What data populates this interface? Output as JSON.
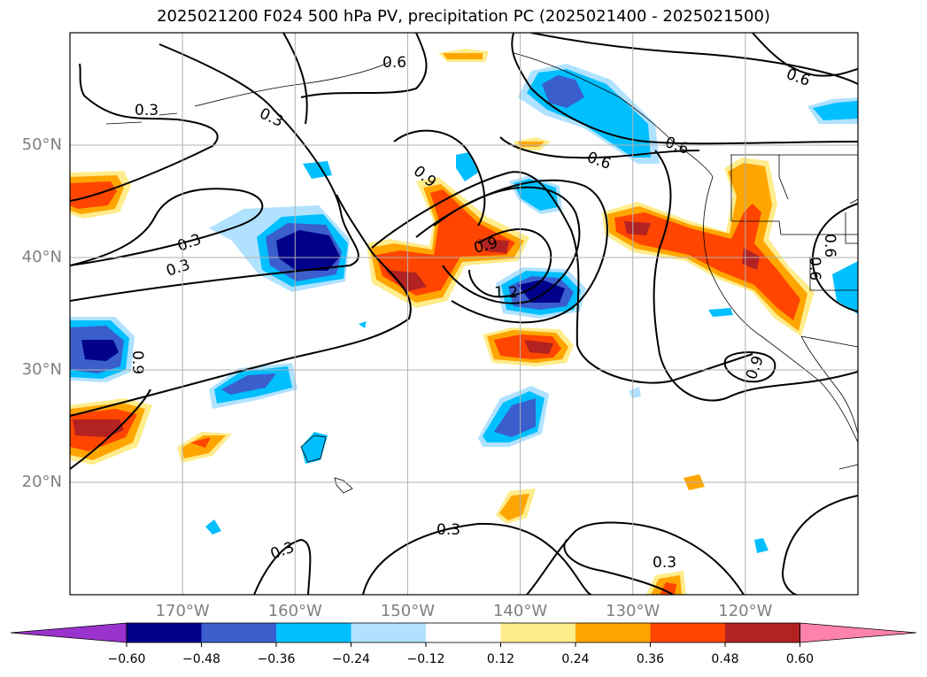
{
  "title": "2025021200 F024 500 hPa PV, precipitation PC (2025021400 - 2025021500)",
  "map": {
    "projection": "lat-lon",
    "gridlines": true,
    "lon_range": [
      -180,
      -110
    ],
    "lat_range": [
      10,
      60
    ],
    "lat_ticks": [
      {
        "value": 50,
        "label": "50°N"
      },
      {
        "value": 40,
        "label": "40°N"
      },
      {
        "value": 30,
        "label": "30°N"
      },
      {
        "value": 20,
        "label": "20°N"
      }
    ],
    "lon_ticks": [
      {
        "value": -170,
        "label": "170°W"
      },
      {
        "value": -160,
        "label": "160°W"
      },
      {
        "value": -150,
        "label": "150°W"
      },
      {
        "value": -140,
        "label": "140°W"
      },
      {
        "value": -130,
        "label": "130°W"
      },
      {
        "value": -120,
        "label": "120°W"
      }
    ],
    "contour_labels": [
      "0.3",
      "0.6",
      "0.9",
      "1.2"
    ]
  },
  "colorbar": {
    "colors": [
      "#9a32cd",
      "#00008b",
      "#3a5fcd",
      "#00bfff",
      "#b0e2ff",
      "#ffffff",
      "#ffec8b",
      "#ffa500",
      "#ff4500",
      "#b22222",
      "#ff82ab"
    ],
    "labels": [
      "−0.60",
      "−0.48",
      "−0.36",
      "−0.24",
      "−0.12",
      "0.12",
      "0.24",
      "0.36",
      "0.48",
      "0.60"
    ]
  }
}
